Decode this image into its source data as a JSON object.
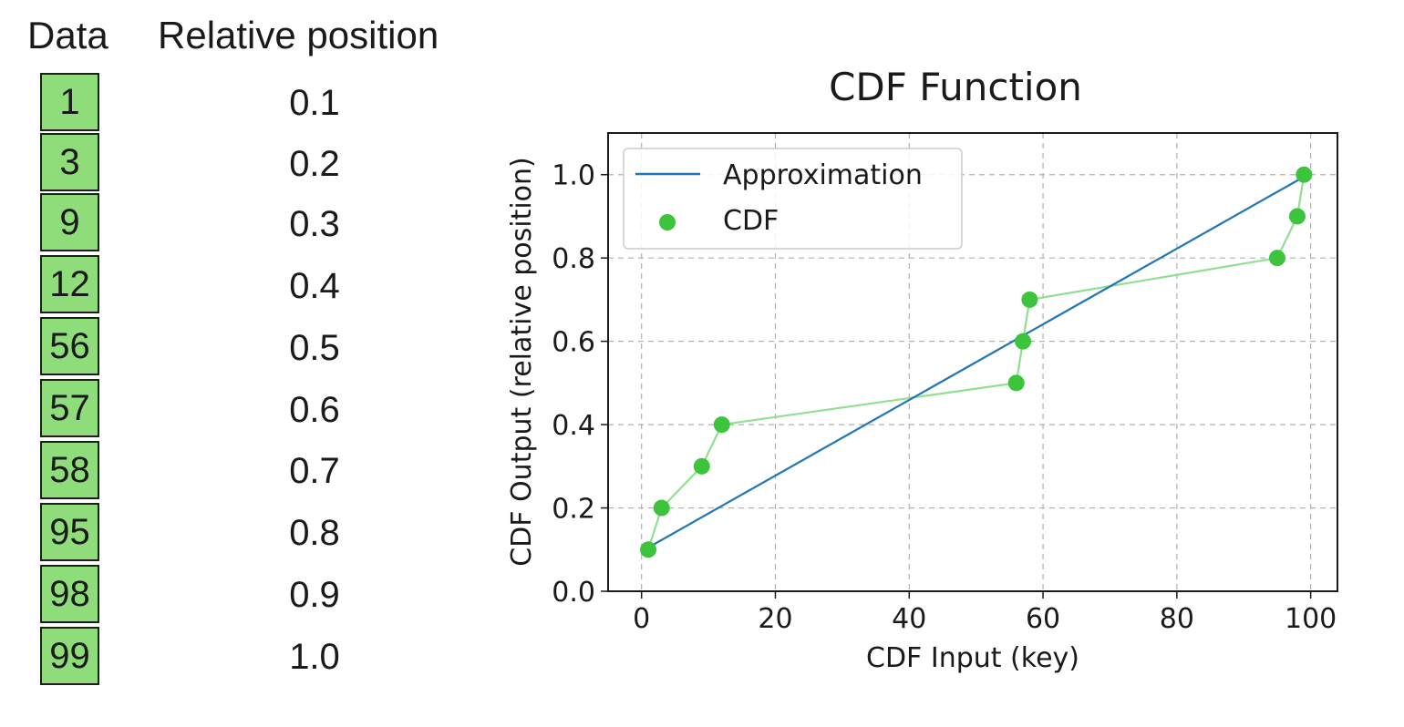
{
  "table": {
    "header_data": "Data",
    "header_relative": "Relative position",
    "rows": [
      {
        "key": "1",
        "rel": "0.1"
      },
      {
        "key": "3",
        "rel": "0.2"
      },
      {
        "key": "9",
        "rel": "0.3"
      },
      {
        "key": "12",
        "rel": "0.4"
      },
      {
        "key": "56",
        "rel": "0.5"
      },
      {
        "key": "57",
        "rel": "0.6"
      },
      {
        "key": "58",
        "rel": "0.7"
      },
      {
        "key": "95",
        "rel": "0.8"
      },
      {
        "key": "98",
        "rel": "0.9"
      },
      {
        "key": "99",
        "rel": "1.0"
      }
    ]
  },
  "chart_data": {
    "type": "line",
    "title": "CDF Function",
    "xlabel": "CDF Input (key)",
    "ylabel": "CDF Output (relative position)",
    "xlim": [
      -5,
      104
    ],
    "ylim": [
      0,
      1.1
    ],
    "xticks": [
      "0",
      "20",
      "40",
      "60",
      "80",
      "100"
    ],
    "yticks": [
      "0.0",
      "0.2",
      "0.4",
      "0.6",
      "0.8",
      "1.0"
    ],
    "grid": true,
    "legend_position": "top-left",
    "series": [
      {
        "name": "Approximation",
        "style": "line",
        "color": "#1f77b4",
        "x": [
          1,
          99
        ],
        "y": [
          0.105,
          0.995
        ]
      },
      {
        "name": "CDF",
        "style": "line-with-markers",
        "color": "#3cc53c",
        "x": [
          1,
          3,
          9,
          12,
          56,
          57,
          58,
          95,
          98,
          99
        ],
        "y": [
          0.1,
          0.2,
          0.3,
          0.4,
          0.5,
          0.6,
          0.7,
          0.8,
          0.9,
          1.0
        ]
      }
    ]
  }
}
